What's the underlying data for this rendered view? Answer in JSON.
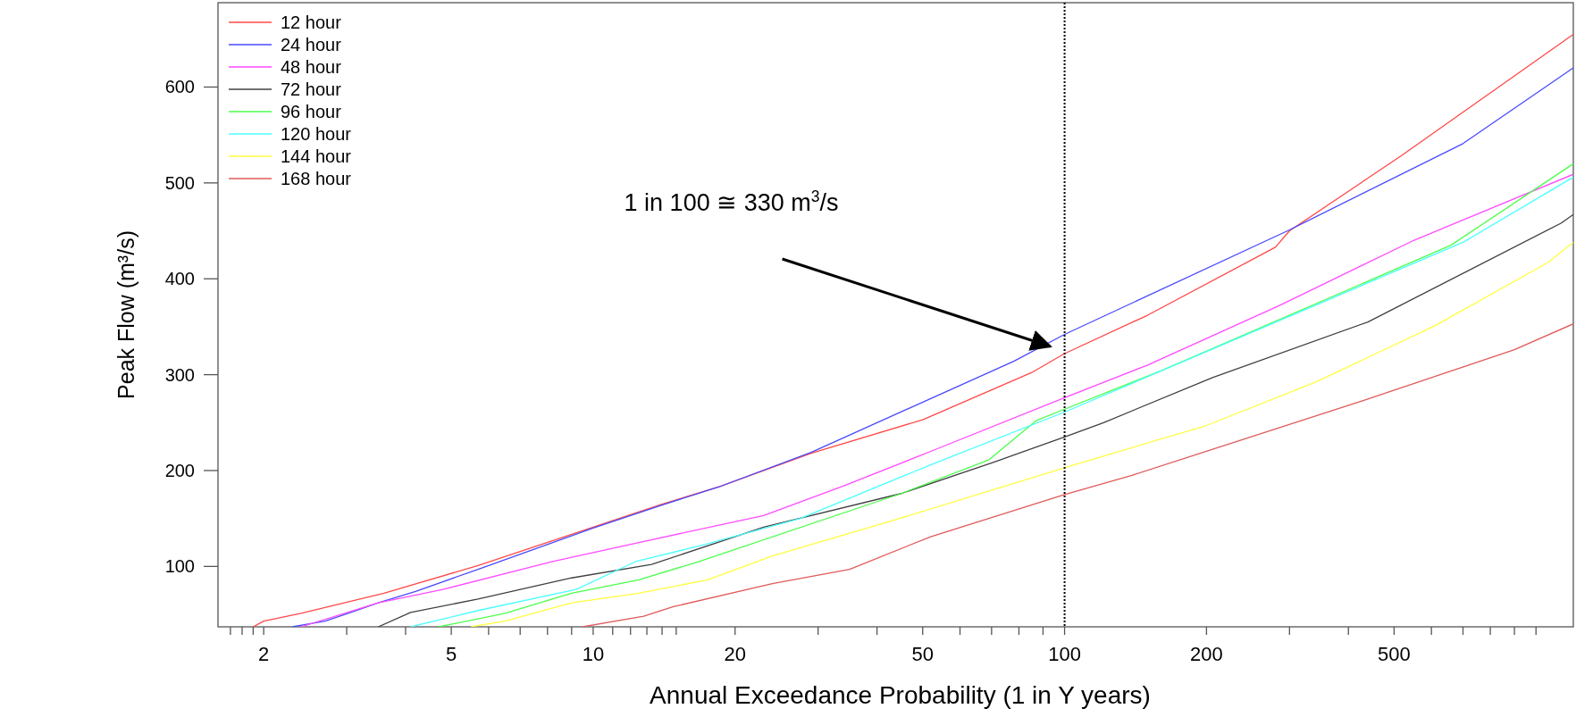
{
  "chart_data": {
    "type": "line",
    "xlabel": "Annual Exceedance Probability (1 in Y years)",
    "ylabel": "Peak Flow (m³/s)",
    "xlim": [
      1.6,
      1200
    ],
    "ylim": [
      37,
      688
    ],
    "xticks": [
      {
        "value": 1.7,
        "label": null
      },
      {
        "value": 1.8,
        "label": null
      },
      {
        "value": 1.9,
        "label": null
      },
      2,
      {
        "value": 3,
        "label": null
      },
      {
        "value": 4,
        "label": null
      },
      5,
      {
        "value": 6,
        "label": null
      },
      {
        "value": 7,
        "label": null
      },
      {
        "value": 8,
        "label": null
      },
      {
        "value": 9,
        "label": null
      },
      10,
      {
        "value": 11,
        "label": null
      },
      {
        "value": 12,
        "label": null
      },
      {
        "value": 13,
        "label": null
      },
      {
        "value": 14,
        "label": null
      },
      {
        "value": 15,
        "label": null
      },
      20,
      {
        "value": 30,
        "label": null
      },
      {
        "value": 40,
        "label": null
      },
      50,
      {
        "value": 60,
        "label": null
      },
      {
        "value": 70,
        "label": null
      },
      {
        "value": 80,
        "label": null
      },
      {
        "value": 90,
        "label": null
      },
      100,
      200,
      {
        "value": 300,
        "label": null
      },
      {
        "value": 400,
        "label": null
      },
      500,
      {
        "value": 600,
        "label": null
      },
      {
        "value": 700,
        "label": null
      },
      {
        "value": 800,
        "label": null
      },
      {
        "value": 900,
        "label": null
      },
      {
        "value": 1000,
        "label": null
      }
    ],
    "yticks": [
      100,
      200,
      300,
      400,
      500,
      600
    ],
    "log": "x",
    "grid": false,
    "legend": "top left",
    "marker": "none",
    "line_style": "solid",
    "ref_lines": [
      {
        "axis": "x",
        "value": 100,
        "color": "#000000",
        "line_style": "dotted"
      }
    ],
    "annotations": [
      "1 in 100  ≅ 330 m$^{3}$/s"
    ],
    "series": [
      {
        "name": "12 hour",
        "color": "#ff4848",
        "x": [
          1.9,
          2,
          2.4,
          3.6,
          5.7,
          10,
          14,
          18.5,
          29,
          50,
          85,
          100,
          150,
          280,
          300,
          520,
          1200
        ],
        "values": [
          37,
          43,
          51,
          72,
          101,
          141,
          165,
          183,
          218,
          253,
          302,
          322,
          362,
          433,
          450,
          529,
          655
        ]
      },
      {
        "name": "24 hour",
        "color": "#4a4aff",
        "x": [
          2.3,
          2.7,
          3.1,
          3.5,
          4.2,
          5.7,
          10,
          14,
          18.5,
          29,
          78,
          100,
          300,
          700,
          1200
        ],
        "values": [
          37,
          43,
          53,
          62,
          74,
          97,
          140,
          164,
          183,
          219,
          314,
          342,
          451,
          541,
          620
        ]
      },
      {
        "name": "48 hour",
        "color": "#ff4aff",
        "x": [
          2.4,
          3.5,
          4.8,
          8.2,
          12.5,
          23,
          34,
          52,
          100,
          150,
          285,
          550,
          1200
        ],
        "values": [
          37,
          62,
          76,
          105,
          125,
          153,
          184,
          220,
          276,
          310,
          372,
          440,
          509
        ]
      },
      {
        "name": "72 hour",
        "color": "#404040",
        "x": [
          3.5,
          4.1,
          5.7,
          9,
          13.3,
          23,
          45,
          71,
          100,
          121,
          206,
          440,
          1130,
          1200
        ],
        "values": [
          37,
          52,
          66,
          88,
          102,
          141,
          176,
          209,
          235,
          250,
          297,
          355,
          458,
          467
        ]
      },
      {
        "name": "96 hour",
        "color": "#4aff4a",
        "x": [
          4.7,
          6.5,
          9,
          12.5,
          16.5,
          45,
          69,
          87,
          100,
          160,
          660,
          1200
        ],
        "values": [
          37,
          51,
          72,
          86,
          104,
          176,
          211,
          252,
          264,
          304,
          435,
          520
        ]
      },
      {
        "name": "120 hour",
        "color": "#4affff",
        "x": [
          4.1,
          5.7,
          9.2,
          12.3,
          17.3,
          27.5,
          52,
          100,
          700,
          1200
        ],
        "values": [
          37,
          54,
          76,
          105,
          123,
          150,
          206,
          261,
          438,
          506
        ]
      },
      {
        "name": "144 hour",
        "color": "#ffff40",
        "x": [
          5.5,
          6.5,
          9,
          12.5,
          17.5,
          24,
          42,
          100,
          200,
          340,
          610,
          1060,
          1200
        ],
        "values": [
          37,
          43,
          62,
          72,
          86,
          111,
          146,
          203,
          247,
          292,
          351,
          417,
          438
        ]
      },
      {
        "name": "168 hour",
        "color": "#e05a5a",
        "x": [
          9.5,
          12.8,
          14.8,
          24,
          35,
          52,
          100,
          139,
          430,
          900,
          1200
        ],
        "values": [
          37,
          48,
          58,
          82,
          97,
          131,
          175,
          195,
          273,
          326,
          353
        ]
      }
    ]
  }
}
